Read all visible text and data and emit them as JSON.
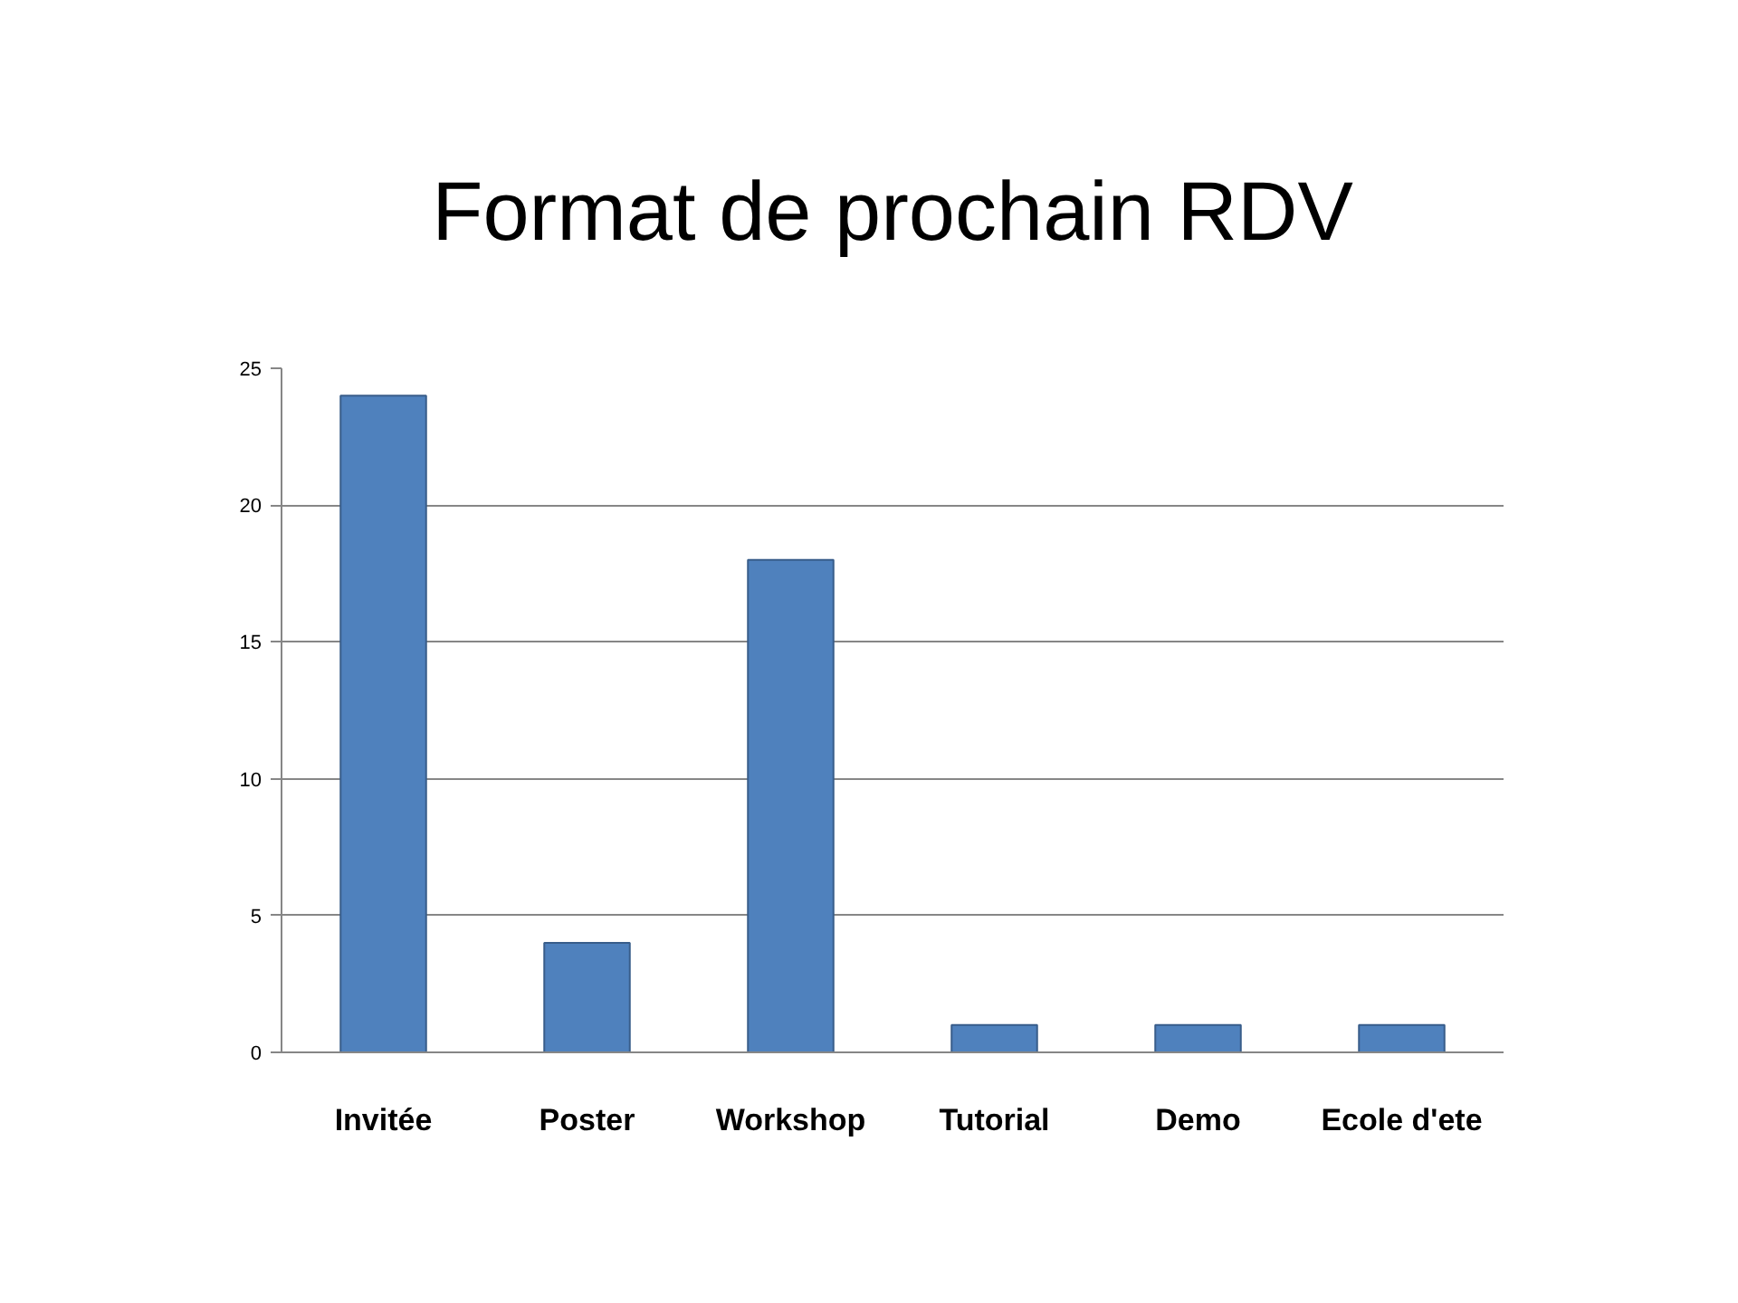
{
  "chart_data": {
    "type": "bar",
    "title": "Format de prochain RDV",
    "categories": [
      "Invitée",
      "Poster",
      "Workshop",
      "Tutorial",
      "Demo",
      "Ecole d'ete"
    ],
    "values": [
      24,
      4,
      18,
      1,
      1,
      1
    ],
    "color": "#4f81bd",
    "ylim": [
      0,
      25
    ],
    "yticks": [
      0,
      5,
      10,
      15,
      20,
      25
    ],
    "grid": "y"
  }
}
